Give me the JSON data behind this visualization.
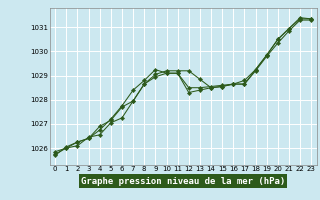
{
  "title": "Graphe pression niveau de la mer (hPa)",
  "background_color": "#cce8f0",
  "grid_color": "#ffffff",
  "line_color": "#2d5a1b",
  "marker_color": "#2d5a1b",
  "xlabel_bg": "#2d5a1b",
  "xlabel_fg": "#ffffff",
  "xlim": [
    -0.5,
    23.5
  ],
  "ylim": [
    1025.3,
    1031.8
  ],
  "yticks": [
    1026,
    1027,
    1028,
    1029,
    1030,
    1031
  ],
  "xticks": [
    0,
    1,
    2,
    3,
    4,
    5,
    6,
    7,
    8,
    9,
    10,
    11,
    12,
    13,
    14,
    15,
    16,
    17,
    18,
    19,
    20,
    21,
    22,
    23
  ],
  "series1": [
    1025.75,
    1026.0,
    1026.1,
    1026.45,
    1026.55,
    1027.05,
    1027.25,
    1027.95,
    1028.65,
    1029.05,
    1029.2,
    1029.2,
    1029.2,
    1028.85,
    1028.5,
    1028.55,
    1028.65,
    1028.65,
    1029.25,
    1029.85,
    1030.5,
    1030.95,
    1031.4,
    1031.35
  ],
  "series2": [
    1025.7,
    1026.05,
    1026.25,
    1026.4,
    1026.9,
    1027.15,
    1027.7,
    1027.95,
    1028.65,
    1028.95,
    1029.1,
    1029.1,
    1028.3,
    1028.4,
    1028.5,
    1028.55,
    1028.65,
    1028.65,
    1029.2,
    1029.8,
    1030.35,
    1030.85,
    1031.3,
    1031.3
  ],
  "series3": [
    1025.85,
    1026.0,
    1026.25,
    1026.4,
    1026.75,
    1027.2,
    1027.75,
    1028.4,
    1028.8,
    1029.25,
    1029.1,
    1029.1,
    1028.5,
    1028.5,
    1028.55,
    1028.6,
    1028.65,
    1028.8,
    1029.25,
    1029.85,
    1030.5,
    1030.95,
    1031.35,
    1031.35
  ]
}
